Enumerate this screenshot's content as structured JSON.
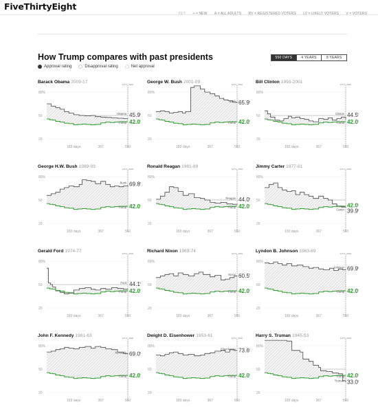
{
  "header": {
    "logo": "FiveThirtyEight",
    "key": {
      "title": "KEY",
      "items": [
        "+ = NEW",
        "A = ALL ADULTS",
        "RV = REGISTERED VOTERS",
        "LV = LIKELY VOTERS",
        "V = VOTERS"
      ]
    }
  },
  "main": {
    "title": "How Trump compares with past presidents",
    "legend": {
      "approval": "Approval rating",
      "disapproval": "Disapproval rating",
      "net": "Net approval"
    },
    "toggle": [
      "550 DAYS",
      "4 YEARS",
      "8 YEARS"
    ],
    "toggle_active": 0
  },
  "colors": {
    "trump": "#2e9c2e",
    "president": "#444444",
    "shade": "#dddddd",
    "marker": "#666666"
  },
  "chart_data": {
    "type": "line",
    "xlim": [
      0,
      550
    ],
    "ylim": [
      20,
      80
    ],
    "yticks": [
      80,
      50,
      20
    ],
    "ytick_labels": [
      "80%",
      "50",
      "20"
    ],
    "xticks": [
      183,
      367,
      550
    ],
    "xtick_labels": [
      "183 days",
      "367",
      "550"
    ],
    "marker": {
      "day": 550,
      "label": "DAY 550"
    },
    "trump_label": "Trump",
    "trump_value": "42.0",
    "trump_series": [
      [
        0,
        45.5
      ],
      [
        20,
        44.5
      ],
      [
        40,
        44.0
      ],
      [
        60,
        42.5
      ],
      [
        90,
        41.5
      ],
      [
        120,
        40.0
      ],
      [
        150,
        39.5
      ],
      [
        183,
        38.0
      ],
      [
        210,
        38.5
      ],
      [
        240,
        39.0
      ],
      [
        270,
        38.5
      ],
      [
        300,
        38.0
      ],
      [
        330,
        38.5
      ],
      [
        367,
        40.5
      ],
      [
        400,
        41.5
      ],
      [
        430,
        41.0
      ],
      [
        460,
        41.5
      ],
      [
        490,
        42.0
      ],
      [
        520,
        42.0
      ],
      [
        550,
        42.0
      ]
    ],
    "presidents": [
      {
        "name": "Barack Obama",
        "years": "2009-17",
        "final": "45.9",
        "label_side": "above",
        "series": [
          [
            0,
            65
          ],
          [
            30,
            62
          ],
          [
            60,
            60
          ],
          [
            90,
            58
          ],
          [
            120,
            55
          ],
          [
            150,
            53
          ],
          [
            183,
            51
          ],
          [
            220,
            50
          ],
          [
            260,
            49.5
          ],
          [
            300,
            50
          ],
          [
            330,
            48.5
          ],
          [
            367,
            48
          ],
          [
            400,
            47.5
          ],
          [
            440,
            47
          ],
          [
            480,
            46.5
          ],
          [
            520,
            46
          ],
          [
            550,
            45.9
          ]
        ]
      },
      {
        "name": "George W. Bush",
        "years": "2001-09",
        "final": "65.9",
        "label_side": "above",
        "series": [
          [
            0,
            55
          ],
          [
            30,
            56
          ],
          [
            60,
            55
          ],
          [
            90,
            53
          ],
          [
            120,
            54
          ],
          [
            150,
            55
          ],
          [
            180,
            53
          ],
          [
            200,
            55
          ],
          [
            235,
            56
          ],
          [
            236,
            86
          ],
          [
            260,
            88
          ],
          [
            300,
            84
          ],
          [
            330,
            80
          ],
          [
            367,
            78
          ],
          [
            400,
            75
          ],
          [
            430,
            72
          ],
          [
            460,
            70
          ],
          [
            490,
            69
          ],
          [
            520,
            67
          ],
          [
            550,
            65.9
          ]
        ]
      },
      {
        "name": "Bill Clinton",
        "years": "1993-2001",
        "final": "44.5",
        "label_side": "above",
        "series": [
          [
            0,
            56
          ],
          [
            20,
            52
          ],
          [
            40,
            48
          ],
          [
            70,
            44
          ],
          [
            100,
            43
          ],
          [
            130,
            46
          ],
          [
            160,
            49
          ],
          [
            183,
            47
          ],
          [
            210,
            48
          ],
          [
            240,
            46
          ],
          [
            270,
            45
          ],
          [
            300,
            43
          ],
          [
            330,
            42
          ],
          [
            367,
            46
          ],
          [
            400,
            45
          ],
          [
            430,
            47
          ],
          [
            460,
            44
          ],
          [
            490,
            46
          ],
          [
            520,
            48
          ],
          [
            550,
            44.5
          ]
        ]
      },
      {
        "name": "George H.W. Bush",
        "years": "1989-93",
        "final": "69.8",
        "label_side": "above",
        "series": [
          [
            0,
            56
          ],
          [
            30,
            58
          ],
          [
            60,
            60
          ],
          [
            90,
            64
          ],
          [
            120,
            66
          ],
          [
            150,
            68
          ],
          [
            183,
            67
          ],
          [
            220,
            70
          ],
          [
            240,
            76
          ],
          [
            270,
            75
          ],
          [
            300,
            74
          ],
          [
            330,
            71
          ],
          [
            367,
            74
          ],
          [
            400,
            70
          ],
          [
            430,
            67
          ],
          [
            460,
            68
          ],
          [
            490,
            67
          ],
          [
            520,
            68
          ],
          [
            550,
            69.8
          ]
        ]
      },
      {
        "name": "Ronald Reagan",
        "years": "1981-89",
        "final": "44.0",
        "label_side": "above",
        "series": [
          [
            0,
            51
          ],
          [
            30,
            55
          ],
          [
            60,
            60
          ],
          [
            90,
            67
          ],
          [
            120,
            66
          ],
          [
            150,
            61
          ],
          [
            183,
            56
          ],
          [
            220,
            58
          ],
          [
            260,
            53
          ],
          [
            300,
            52
          ],
          [
            330,
            50
          ],
          [
            367,
            47
          ],
          [
            400,
            46
          ],
          [
            440,
            47
          ],
          [
            480,
            45
          ],
          [
            520,
            44.5
          ],
          [
            550,
            44.0
          ]
        ]
      },
      {
        "name": "Jimmy Carter",
        "years": "1977-81",
        "final": "39.9",
        "label_side": "below",
        "series": [
          [
            0,
            66
          ],
          [
            30,
            70
          ],
          [
            60,
            72
          ],
          [
            90,
            66
          ],
          [
            120,
            63
          ],
          [
            150,
            61
          ],
          [
            183,
            62
          ],
          [
            210,
            57
          ],
          [
            240,
            60
          ],
          [
            270,
            57
          ],
          [
            300,
            55
          ],
          [
            330,
            52
          ],
          [
            367,
            55
          ],
          [
            400,
            52
          ],
          [
            430,
            50
          ],
          [
            460,
            45
          ],
          [
            490,
            42
          ],
          [
            520,
            41
          ],
          [
            550,
            39.9
          ]
        ]
      },
      {
        "name": "Gerald Ford",
        "years": "1974-77",
        "final": "44.1",
        "label_side": "above",
        "series": [
          [
            0,
            71
          ],
          [
            10,
            71
          ],
          [
            12,
            52
          ],
          [
            25,
            50
          ],
          [
            40,
            47
          ],
          [
            60,
            42
          ],
          [
            90,
            40
          ],
          [
            120,
            38
          ],
          [
            150,
            39
          ],
          [
            183,
            43
          ],
          [
            220,
            45
          ],
          [
            260,
            46
          ],
          [
            300,
            44
          ],
          [
            330,
            43
          ],
          [
            367,
            45
          ],
          [
            400,
            44
          ],
          [
            440,
            46
          ],
          [
            480,
            45
          ],
          [
            520,
            44
          ],
          [
            550,
            44.1
          ]
        ]
      },
      {
        "name": "Richard Nixon",
        "years": "1969-74",
        "final": "60.5",
        "label_side": "above",
        "series": [
          [
            0,
            59
          ],
          [
            30,
            61
          ],
          [
            60,
            63
          ],
          [
            90,
            64
          ],
          [
            120,
            61
          ],
          [
            150,
            65
          ],
          [
            183,
            63
          ],
          [
            220,
            61
          ],
          [
            260,
            64
          ],
          [
            290,
            66
          ],
          [
            320,
            63
          ],
          [
            367,
            60
          ],
          [
            400,
            62
          ],
          [
            440,
            56
          ],
          [
            470,
            57
          ],
          [
            500,
            59
          ],
          [
            530,
            61
          ],
          [
            550,
            60.5
          ]
        ]
      },
      {
        "name": "Lyndon B. Johnson",
        "years": "1963-69",
        "final": "69.9",
        "label_side": "above",
        "series": [
          [
            0,
            78
          ],
          [
            30,
            77
          ],
          [
            60,
            79
          ],
          [
            90,
            77
          ],
          [
            120,
            75
          ],
          [
            150,
            77
          ],
          [
            183,
            74
          ],
          [
            220,
            75
          ],
          [
            260,
            73
          ],
          [
            300,
            71
          ],
          [
            330,
            72
          ],
          [
            367,
            70
          ],
          [
            400,
            69
          ],
          [
            440,
            71
          ],
          [
            470,
            68
          ],
          [
            500,
            70
          ],
          [
            530,
            69
          ],
          [
            550,
            69.9
          ]
        ]
      },
      {
        "name": "John F. Kennedy",
        "years": "1961-63",
        "final": "69.0",
        "label_side": "above",
        "series": [
          [
            0,
            72
          ],
          [
            30,
            73
          ],
          [
            60,
            75
          ],
          [
            90,
            76
          ],
          [
            120,
            78
          ],
          [
            150,
            77
          ],
          [
            183,
            76
          ],
          [
            220,
            78
          ],
          [
            260,
            79
          ],
          [
            300,
            77
          ],
          [
            330,
            79
          ],
          [
            367,
            78
          ],
          [
            400,
            76
          ],
          [
            440,
            75
          ],
          [
            480,
            72
          ],
          [
            520,
            70
          ],
          [
            550,
            69.0
          ]
        ]
      },
      {
        "name": "Dwight D. Eisenhower",
        "years": "1953-61",
        "final": "73.6",
        "label_side": "above",
        "series": [
          [
            0,
            68
          ],
          [
            30,
            67
          ],
          [
            60,
            69
          ],
          [
            90,
            71
          ],
          [
            120,
            72
          ],
          [
            150,
            70
          ],
          [
            183,
            68
          ],
          [
            220,
            69
          ],
          [
            260,
            67
          ],
          [
            300,
            68
          ],
          [
            330,
            70
          ],
          [
            367,
            71
          ],
          [
            400,
            73
          ],
          [
            440,
            74
          ],
          [
            470,
            72
          ],
          [
            500,
            75
          ],
          [
            530,
            74
          ],
          [
            550,
            73.6
          ]
        ]
      },
      {
        "name": "Harry S. Truman",
        "years": "1945-53",
        "final": "33.0",
        "label_side": "below",
        "series": [
          [
            0,
            87
          ],
          [
            50,
            87
          ],
          [
            110,
            87
          ],
          [
            150,
            86
          ],
          [
            183,
            85
          ],
          [
            185,
            74
          ],
          [
            240,
            72
          ],
          [
            260,
            63
          ],
          [
            300,
            60
          ],
          [
            330,
            55
          ],
          [
            367,
            52
          ],
          [
            380,
            48
          ],
          [
            420,
            47
          ],
          [
            460,
            45
          ],
          [
            500,
            44
          ],
          [
            530,
            35
          ],
          [
            550,
            33.0
          ]
        ]
      }
    ]
  }
}
